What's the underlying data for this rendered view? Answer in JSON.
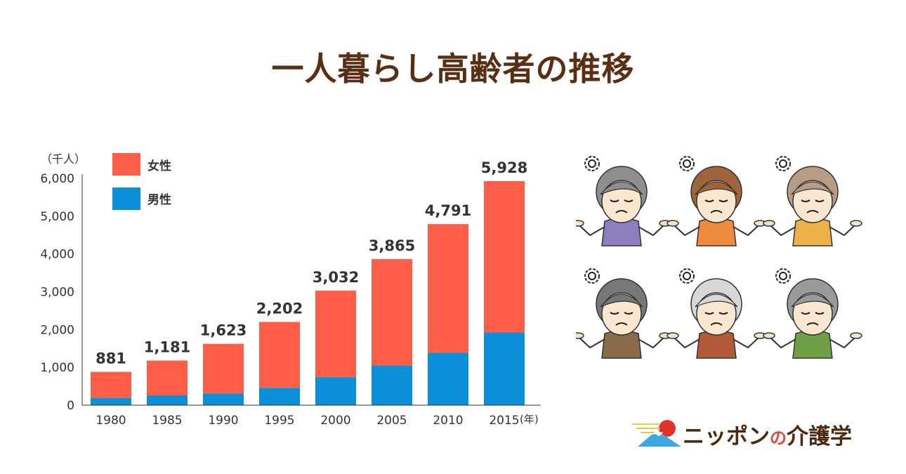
{
  "title": "一人暮らし高齢者の推移",
  "chart_data": {
    "type": "bar",
    "stacked": true,
    "categories": [
      "1980",
      "1985",
      "1990",
      "1995",
      "2000",
      "2005",
      "2010",
      "2015"
    ],
    "series": [
      {
        "name": "男性",
        "color": "#0b8fd8",
        "values": [
          193,
          260,
          310,
          460,
          742,
          1051,
          1386,
          1924
        ]
      },
      {
        "name": "女性",
        "color": "#ff5f47",
        "values": [
          688,
          921,
          1313,
          1742,
          2290,
          2814,
          3405,
          4004
        ]
      }
    ],
    "totals": [
      "881",
      "1,181",
      "1,623",
      "2,202",
      "3,032",
      "3,865",
      "4,791",
      "5,928"
    ],
    "totals_values": [
      881,
      1181,
      1623,
      2202,
      3032,
      3865,
      4791,
      5928
    ],
    "ylim": [
      0,
      6000
    ],
    "yticks": [
      0,
      1000,
      2000,
      3000,
      4000,
      5000,
      6000
    ],
    "ytick_labels": [
      "0",
      "1,000",
      "2,000",
      "3,000",
      "4,000",
      "5,000",
      "6,000"
    ],
    "ylabel": "（千人）",
    "xlabel_unit": "(年)",
    "legend": [
      "女性",
      "男性"
    ],
    "legend_placement": "top-left",
    "grid": false
  },
  "illustration": {
    "people": [
      {
        "hair": "#8e8e8e",
        "shirt": "#8d7fbf",
        "icon": "worried-elderly-woman-icon"
      },
      {
        "hair": "#a0643a",
        "shirt": "#f08a3c",
        "icon": "worried-elderly-woman-icon"
      },
      {
        "hair": "#b99c86",
        "shirt": "#eeb14a",
        "icon": "worried-elderly-woman-icon"
      },
      {
        "hair": "#777777",
        "shirt": "#8b6a4a",
        "icon": "worried-elderly-man-icon"
      },
      {
        "hair": "#d8d8d8",
        "shirt": "#b25a38",
        "icon": "worried-elderly-man-icon"
      },
      {
        "hair": "#9a9a9a",
        "shirt": "#6fa045",
        "icon": "worried-elderly-man-icon"
      }
    ]
  },
  "logo": {
    "text_1": "ニッポン",
    "text_no": "の",
    "text_2": "介護学"
  }
}
